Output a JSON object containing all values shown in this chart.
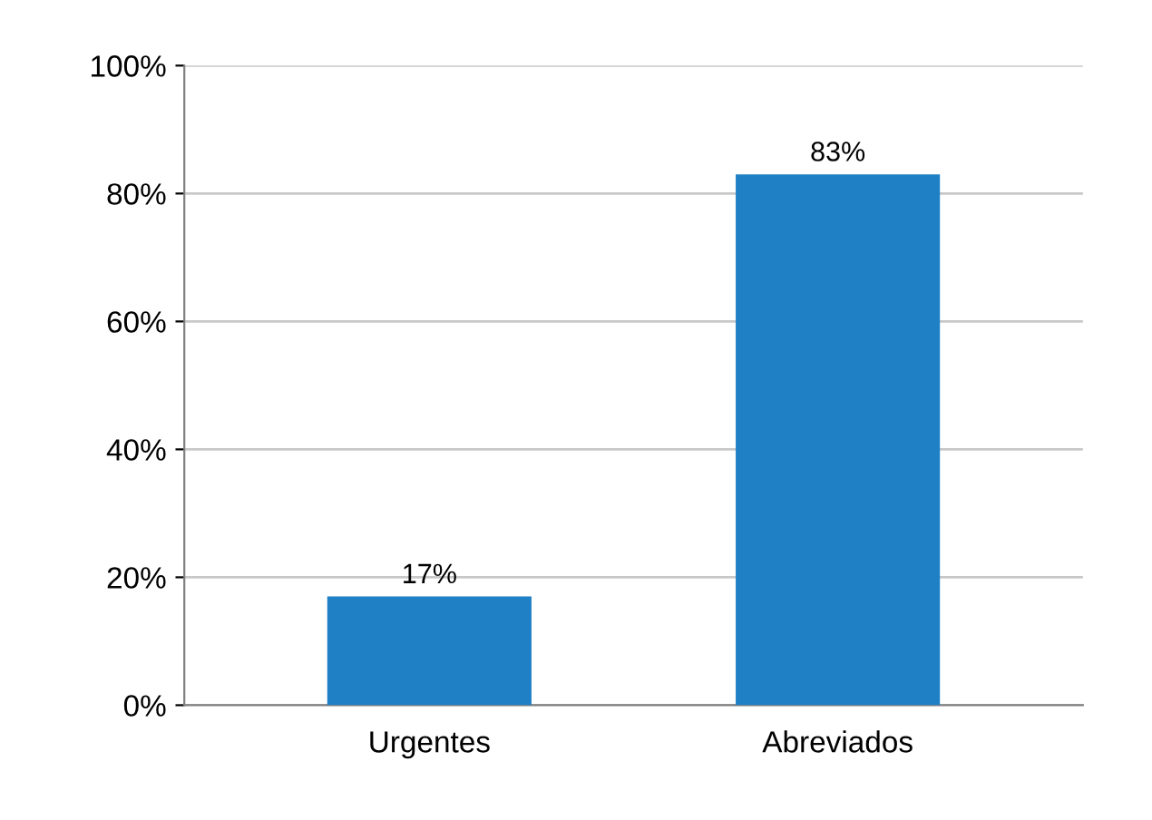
{
  "chart_data": {
    "type": "bar",
    "categories": [
      "Urgentes",
      "Abreviados"
    ],
    "values": [
      17,
      83
    ],
    "color": "#1f80c6",
    "value_labels": [
      "17%",
      "83%"
    ],
    "ylim": [
      0,
      100
    ],
    "yticks": [
      {
        "value": 0,
        "label": "0%"
      },
      {
        "value": 20,
        "label": "20%"
      },
      {
        "value": 40,
        "label": "40%"
      },
      {
        "value": 60,
        "label": "60%"
      },
      {
        "value": 80,
        "label": "80%"
      },
      {
        "value": 100,
        "label": "100%"
      }
    ],
    "grid": "y"
  }
}
